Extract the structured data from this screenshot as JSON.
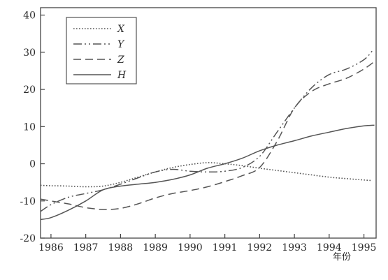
{
  "chart_data": {
    "type": "line",
    "xlabel": "年份",
    "ylabel": "",
    "xlim": [
      1985.7,
      1995.35
    ],
    "ylim": [
      -20,
      42
    ],
    "xticks": [
      1986,
      1987,
      1988,
      1989,
      1990,
      1991,
      1992,
      1993,
      1994,
      1995
    ],
    "yticks": [
      -20,
      -10,
      0,
      10,
      20,
      30,
      40
    ],
    "grid": false,
    "legend": "top-left",
    "colors": {
      "line": "#555555",
      "axis": "#444444",
      "text": "#2b2b2b"
    },
    "series": [
      {
        "name": "X",
        "dash": "dotted",
        "x": [
          1985.7,
          1986,
          1986.5,
          1987,
          1987.5,
          1988,
          1988.5,
          1989,
          1989.5,
          1990,
          1990.5,
          1991,
          1991.5,
          1992,
          1992.5,
          1993,
          1993.5,
          1994,
          1994.5,
          1995.2
        ],
        "y": [
          -5.8,
          -5.9,
          -6.0,
          -6.2,
          -6.0,
          -5.0,
          -3.6,
          -2.2,
          -1.0,
          -0.2,
          0.3,
          0.0,
          -0.5,
          -1.2,
          -1.8,
          -2.4,
          -3.0,
          -3.6,
          -4.0,
          -4.5
        ]
      },
      {
        "name": "Y",
        "dash": "dashdotdot",
        "x": [
          1985.7,
          1986,
          1986.5,
          1987,
          1987.5,
          1988,
          1988.5,
          1989,
          1989.5,
          1990,
          1990.5,
          1991,
          1991.5,
          1992,
          1992.5,
          1993,
          1993.5,
          1994,
          1994.5,
          1995,
          1995.25
        ],
        "y": [
          -12.8,
          -11.0,
          -9.0,
          -8.0,
          -7.0,
          -5.5,
          -3.8,
          -2.2,
          -1.5,
          -2.0,
          -2.2,
          -2.0,
          -1.0,
          2.0,
          8.5,
          15.0,
          20.5,
          24.0,
          25.5,
          28.0,
          30.5
        ]
      },
      {
        "name": "Z",
        "dash": "dashed",
        "x": [
          1985.7,
          1986,
          1986.5,
          1987,
          1987.5,
          1988,
          1988.5,
          1989,
          1989.5,
          1990,
          1990.5,
          1991,
          1991.5,
          1992,
          1992.5,
          1993,
          1993.5,
          1994,
          1994.5,
          1995,
          1995.3
        ],
        "y": [
          -9.5,
          -10.0,
          -10.8,
          -11.8,
          -12.3,
          -12.0,
          -10.8,
          -9.2,
          -8.0,
          -7.2,
          -6.2,
          -4.8,
          -3.2,
          -1.0,
          6.0,
          15.0,
          19.5,
          21.5,
          23.0,
          25.5,
          27.5
        ]
      },
      {
        "name": "H",
        "dash": "solid",
        "x": [
          1985.7,
          1986,
          1986.5,
          1987,
          1987.5,
          1988,
          1988.5,
          1989,
          1989.5,
          1990,
          1990.5,
          1991,
          1991.5,
          1992,
          1992.5,
          1993,
          1993.5,
          1994,
          1994.5,
          1995,
          1995.3
        ],
        "y": [
          -15.0,
          -14.5,
          -12.5,
          -10.0,
          -7.0,
          -6.0,
          -5.5,
          -5.0,
          -4.2,
          -3.0,
          -1.2,
          0.0,
          1.5,
          3.5,
          5.0,
          6.2,
          7.5,
          8.5,
          9.5,
          10.2,
          10.4
        ]
      }
    ]
  }
}
